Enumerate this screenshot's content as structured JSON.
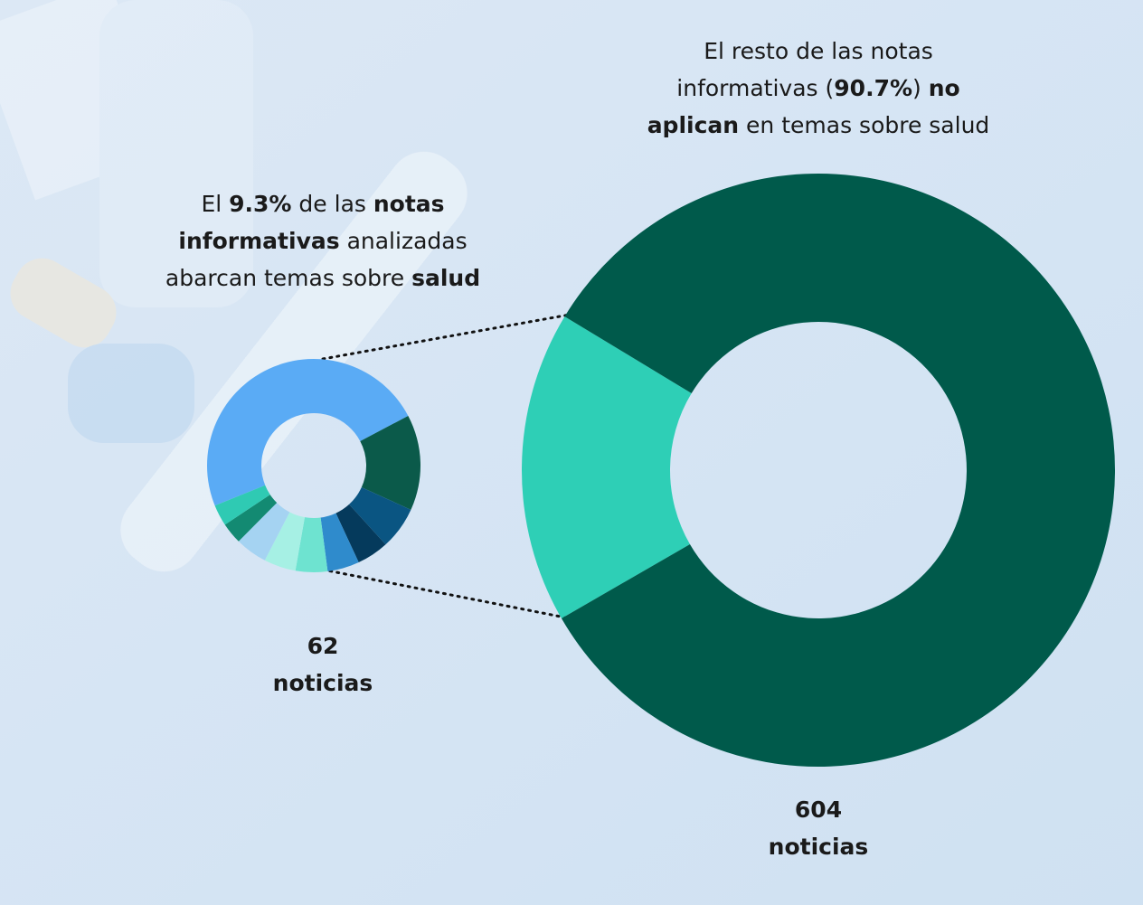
{
  "chart_data": [
    {
      "type": "donut",
      "annotation": [
        [
          {
            "text": "El ",
            "bold": false
          },
          {
            "text": "9.3%",
            "bold": true
          },
          {
            "text": " de las ",
            "bold": false
          },
          {
            "text": "notas",
            "bold": true
          }
        ],
        [
          {
            "text": "informativas",
            "bold": true
          },
          {
            "text": " analizadas",
            "bold": false
          }
        ],
        [
          {
            "text": "abarcan temas sobre ",
            "bold": false
          },
          {
            "text": "salud",
            "bold": true
          }
        ]
      ],
      "total": 62,
      "total_caption": "noticias",
      "start_angle": 248,
      "categories": [
        null,
        null,
        null,
        null,
        null,
        null,
        null,
        null,
        null,
        null
      ],
      "values": [
        30,
        9,
        4,
        3,
        3,
        3,
        3,
        3,
        2,
        2
      ],
      "colors": [
        "#5aabf5",
        "#0b5a4a",
        "#0a5582",
        "#053a5c",
        "#2f8bcc",
        "#6ee3d0",
        "#a6f0e4",
        "#a5d3f2",
        "#138a72",
        "#2fcab3"
      ]
    },
    {
      "type": "donut",
      "annotation": [
        [
          {
            "text": "El resto de las notas",
            "bold": false
          }
        ],
        [
          {
            "text": "informativas (",
            "bold": false
          },
          {
            "text": "90.7%",
            "bold": true
          },
          {
            "text": ") ",
            "bold": false
          },
          {
            "text": "no",
            "bold": true
          }
        ],
        [
          {
            "text": "aplican",
            "bold": true
          },
          {
            "text": " en temas sobre salud",
            "bold": false
          }
        ]
      ],
      "total": 604,
      "total_caption": "noticias",
      "start_angle": 240,
      "categories": [
        null,
        null
      ],
      "values": [
        17,
        83
      ],
      "colors": [
        "#2ecfb6",
        "#005a4b"
      ]
    }
  ]
}
